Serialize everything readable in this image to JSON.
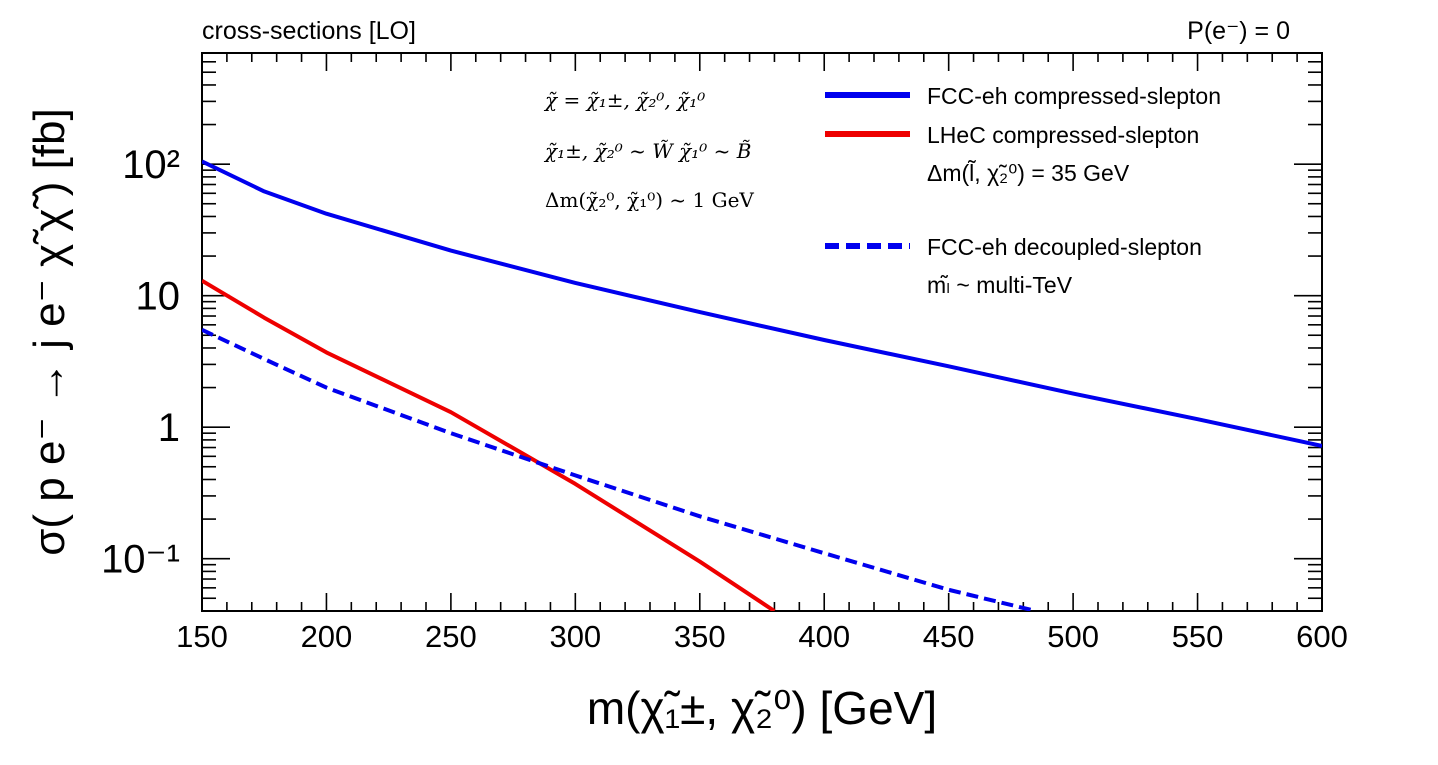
{
  "header": {
    "left_label": "cross-sections [LO]",
    "right_label": "P(e⁻) = 0"
  },
  "notes": {
    "line1": "χ̃ = χ̃₁±, χ̃₂⁰, χ̃₁⁰",
    "line2": "χ̃₁±, χ̃₂⁰ ~ W̃   χ̃₁⁰ ~ B̃",
    "line3": "Δm(χ̃₂⁰, χ̃₁⁰) ~ 1 GeV"
  },
  "legend": {
    "entries": [
      {
        "label": "FCC-eh compressed-slepton",
        "color": "#0000ee",
        "style": "solid"
      },
      {
        "label": "LHeC compressed-slepton",
        "color": "#ee0000",
        "style": "solid",
        "sublabel": "Δm(l̃, χ̃₂⁰) = 35 GeV"
      },
      {
        "label": "FCC-eh decoupled-slepton",
        "color": "#0000ee",
        "style": "dashed",
        "sublabel": "mₗ̃ ~ multi-TeV"
      }
    ]
  },
  "chart_data": {
    "type": "line",
    "title": "cross-sections [LO]",
    "xlabel": "m(χ̃₁±, χ̃₂⁰) [GeV]",
    "ylabel": "σ( p e⁻ → j e⁻ χ̃ χ̃ ) [fb]",
    "xlim": [
      150,
      600
    ],
    "ylim": [
      0.04,
      700
    ],
    "yscale": "log",
    "x_ticks": [
      "150",
      "200",
      "250",
      "300",
      "350",
      "400",
      "450",
      "500",
      "550",
      "600"
    ],
    "y_ticks": [
      {
        "value": 0.1,
        "label": "10⁻¹"
      },
      {
        "value": 1,
        "label": "1"
      },
      {
        "value": 10,
        "label": "10"
      },
      {
        "value": 100,
        "label": "10²"
      }
    ],
    "series": [
      {
        "name": "FCC-eh compressed-slepton",
        "color": "#0000ee",
        "style": "solid",
        "x": [
          150,
          175,
          200,
          250,
          300,
          350,
          400,
          450,
          500,
          550,
          600
        ],
        "y": [
          105,
          62,
          42,
          22,
          12.5,
          7.5,
          4.6,
          2.9,
          1.8,
          1.15,
          0.72
        ]
      },
      {
        "name": "LHeC compressed-slepton",
        "color": "#ee0000",
        "style": "solid",
        "x": [
          150,
          175,
          200,
          250,
          300,
          350,
          380
        ],
        "y": [
          13,
          6.8,
          3.7,
          1.3,
          0.37,
          0.095,
          0.04
        ]
      },
      {
        "name": "FCC-eh decoupled-slepton",
        "color": "#0000ee",
        "style": "dashed",
        "x": [
          150,
          175,
          200,
          250,
          300,
          350,
          400,
          450,
          485
        ],
        "y": [
          5.5,
          3.3,
          2.0,
          0.9,
          0.43,
          0.21,
          0.11,
          0.058,
          0.04
        ]
      }
    ]
  }
}
